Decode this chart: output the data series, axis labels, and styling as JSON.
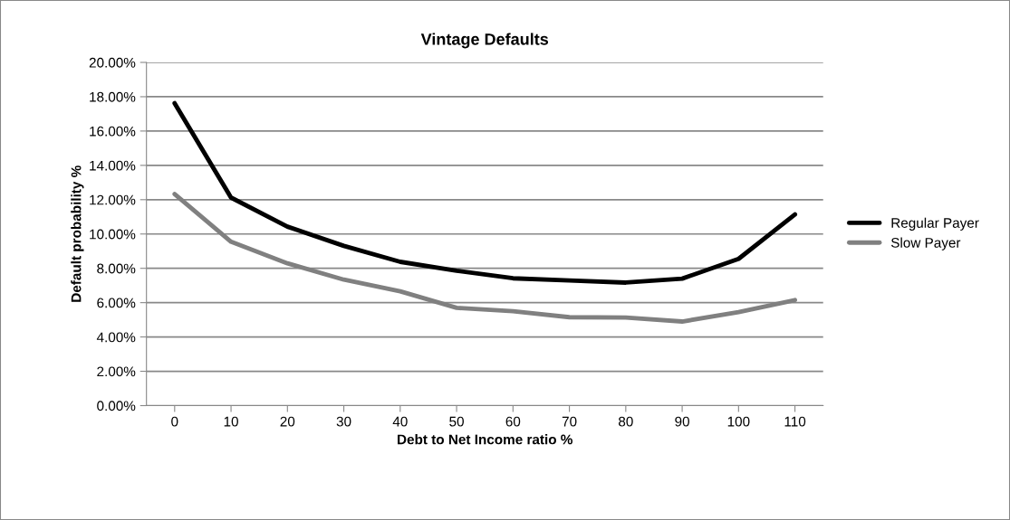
{
  "chart_data": {
    "type": "line",
    "title": "Vintage Defaults",
    "xlabel": "Debt to Net Income ratio %",
    "ylabel": "Default probability %",
    "categories": [
      "0",
      "10",
      "20",
      "30",
      "40",
      "50",
      "60",
      "70",
      "80",
      "90",
      "100",
      "110"
    ],
    "series": [
      {
        "name": "Regular Payer",
        "color": "#000000",
        "values": [
          17.62,
          12.12,
          10.43,
          9.31,
          8.38,
          7.86,
          7.42,
          7.29,
          7.17,
          7.4,
          8.55,
          11.14
        ]
      },
      {
        "name": "Slow Payer",
        "color": "#808080",
        "values": [
          12.33,
          9.55,
          8.29,
          7.34,
          6.66,
          5.7,
          5.5,
          5.15,
          5.13,
          4.9,
          5.45,
          6.15
        ]
      }
    ],
    "ylim": [
      0,
      20
    ],
    "yticks": [
      {
        "value": 0,
        "label": "0.00%"
      },
      {
        "value": 2,
        "label": "2.00%"
      },
      {
        "value": 4,
        "label": "4.00%"
      },
      {
        "value": 6,
        "label": "6.00%"
      },
      {
        "value": 8,
        "label": "8.00%"
      },
      {
        "value": 10,
        "label": "10.00%"
      },
      {
        "value": 12,
        "label": "12.00%"
      },
      {
        "value": 14,
        "label": "14.00%"
      },
      {
        "value": 16,
        "label": "16.00%"
      },
      {
        "value": 18,
        "label": "18.00%"
      },
      {
        "value": 20,
        "label": "20.00%"
      }
    ],
    "grid": "y",
    "legend": "right",
    "marker": "none",
    "line_style": "solid"
  }
}
